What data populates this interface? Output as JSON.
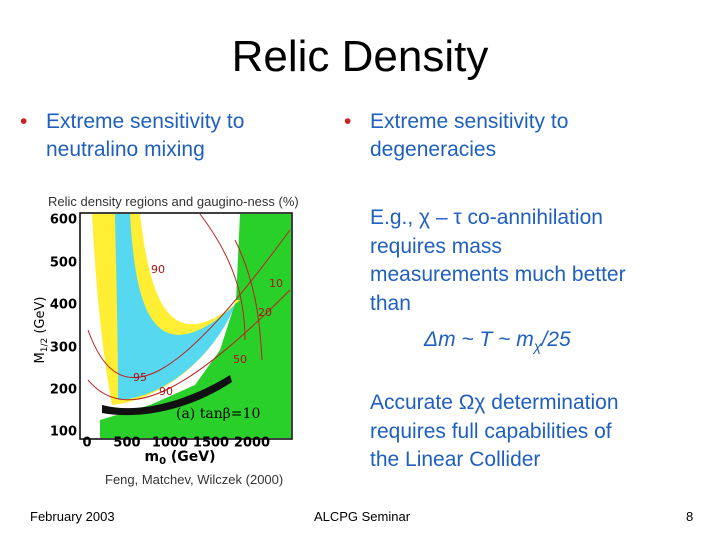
{
  "header": {
    "title": "Relic Density"
  },
  "left": {
    "bullet": [
      "Extreme sensitivity to",
      "neutralino mixing"
    ],
    "figure": {
      "caption": "Relic density regions and gaugino-ness (%)",
      "yticks": [
        "600",
        "500",
        "400",
        "300",
        "200",
        "100"
      ],
      "xticks": [
        "0",
        "500",
        "1000",
        "1500",
        "2000"
      ],
      "ylabel": [
        "M",
        "1/2",
        " (GeV)"
      ],
      "xlabel": [
        "m",
        "0",
        " (GeV)"
      ],
      "contour_labels": [
        "90",
        "10",
        "20",
        "50",
        "95",
        "90"
      ],
      "panel_label": "(a) tanβ=10",
      "credit": "Feng, Matchev, Wilczek (2000)"
    }
  },
  "right": {
    "bullet": [
      "Extreme sensitivity to",
      "degeneracies"
    ],
    "example": [
      "E.g., χ – τ co-annihilation",
      "requires mass",
      "measurements much better",
      "than"
    ],
    "formula": [
      "Δm ~ T ~ m",
      "χ",
      "/25"
    ],
    "accurate": [
      "Accurate Ωχ determination",
      "requires full capabilities of",
      "the Linear Collider"
    ]
  },
  "footer": {
    "date": "February 2003",
    "event": "ALCPG Seminar",
    "page": "8"
  }
}
